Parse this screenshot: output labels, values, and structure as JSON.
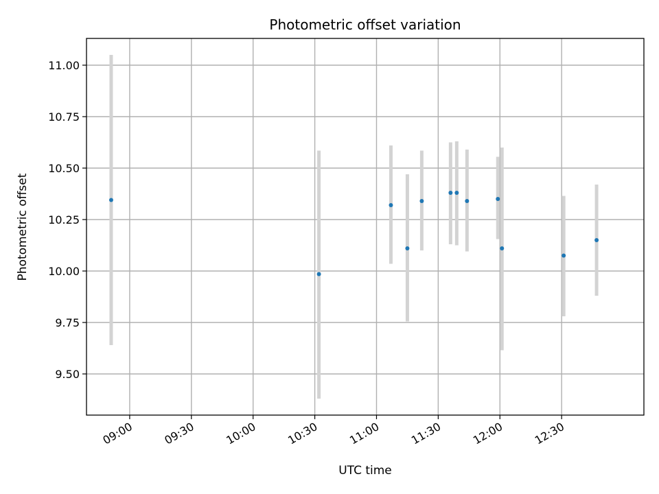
{
  "chart_data": {
    "type": "scatter",
    "title": "Photometric offset variation",
    "xlabel": "UTC time",
    "ylabel": "Photometric offset",
    "x_axis_type": "time",
    "xlim": [
      "08:39",
      "13:10"
    ],
    "ylim": [
      9.3,
      11.13
    ],
    "grid": true,
    "x_tick_values": [
      "09:00",
      "09:30",
      "10:00",
      "10:30",
      "11:00",
      "11:30",
      "12:00",
      "12:30"
    ],
    "x_tick_labels": [
      "09:00",
      "09:30",
      "10:00",
      "10:30",
      "11:00",
      "11:30",
      "12:00",
      "12:30"
    ],
    "y_tick_values": [
      9.5,
      9.75,
      10.0,
      10.25,
      10.5,
      10.75,
      11.0
    ],
    "y_tick_labels": [
      "9.50",
      "9.75",
      "10.00",
      "10.25",
      "10.50",
      "10.75",
      "11.00"
    ],
    "colors": {
      "point": "#1f77b4",
      "errorbar": "#d3d3d3",
      "grid": "#b0b0b0"
    },
    "points": [
      {
        "x": "08:51",
        "y": 10.345,
        "err_low": 9.64,
        "err_high": 11.05
      },
      {
        "x": "10:32",
        "y": 9.985,
        "err_low": 9.38,
        "err_high": 10.585
      },
      {
        "x": "11:07",
        "y": 10.32,
        "err_low": 10.035,
        "err_high": 10.61
      },
      {
        "x": "11:15",
        "y": 10.11,
        "err_low": 9.755,
        "err_high": 10.47
      },
      {
        "x": "11:22",
        "y": 10.34,
        "err_low": 10.1,
        "err_high": 10.585
      },
      {
        "x": "11:36",
        "y": 10.38,
        "err_low": 10.13,
        "err_high": 10.625
      },
      {
        "x": "11:39",
        "y": 10.38,
        "err_low": 10.125,
        "err_high": 10.63
      },
      {
        "x": "11:44",
        "y": 10.34,
        "err_low": 10.095,
        "err_high": 10.59
      },
      {
        "x": "11:59",
        "y": 10.35,
        "err_low": 10.155,
        "err_high": 10.555
      },
      {
        "x": "12:01",
        "y": 10.11,
        "err_low": 9.615,
        "err_high": 10.6
      },
      {
        "x": "12:31",
        "y": 10.075,
        "err_low": 9.78,
        "err_high": 10.365
      },
      {
        "x": "12:47",
        "y": 10.15,
        "err_low": 9.88,
        "err_high": 10.42
      }
    ]
  }
}
